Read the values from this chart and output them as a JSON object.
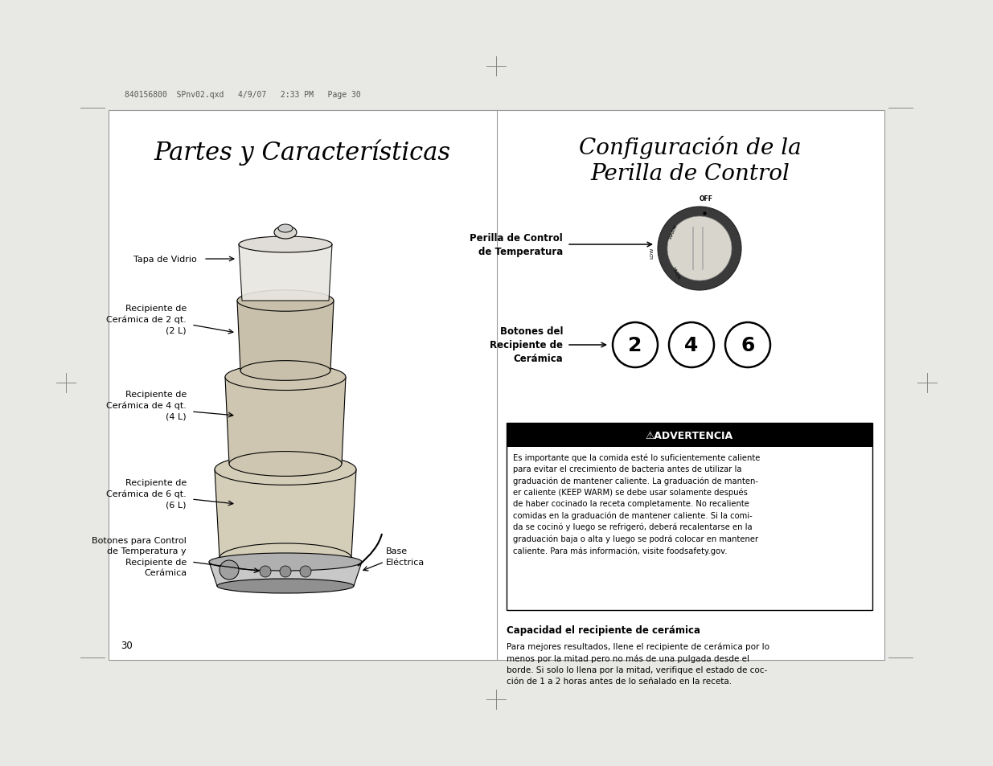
{
  "bg_color": "#e8e8e4",
  "page_bg": "#ffffff",
  "left_title": "Partes y Características",
  "right_title_line1": "Configuración de la",
  "right_title_line2": "Perilla de Control",
  "header_text": "840156800  SPnv02.qxd   4/9/07   2:33 PM   Page 30",
  "page_number": "30",
  "warning_title": "⚠ADVERTENCIA",
  "warning_text": "Es importante que la comida esté lo suficientemente caliente\npara evitar el crecimiento de bacteria antes de utilizar la\ngraduación de mantener caliente. La graduación de manten-\ner caliente (KEEP WARM) se debe usar solamente después\nde haber cocinado la receta completamente. No recaliente\ncomidas en la graduación de mantener caliente. Si la comi-\nda se cocinó y luego se refrigeró, deberá recalentarse en la\ngraduación baja o alta y luego se podrá colocar en mantener\ncaliente. Para más información, visite foodsafety.gov.",
  "capacity_title": "Capacidad el recipiente de cerámica",
  "capacity_text": "Para mejores resultados, llene el recipiente de cerámica por lo\nmenos por la mitad pero no más de una pulgada desde el\nborde. Si solo lo llena por la mitad, verifique el estado de coc-\nción de 1 a 2 horas antes de lo señalado en la receta."
}
